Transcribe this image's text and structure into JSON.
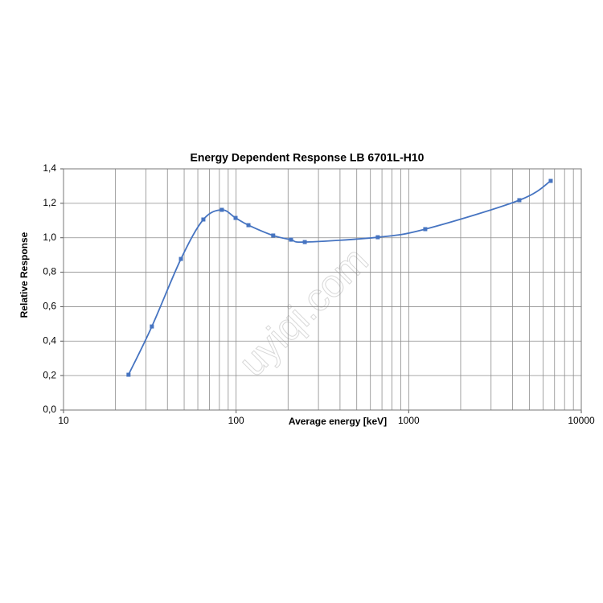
{
  "chart_data": {
    "type": "line",
    "title": "Energy Dependent Response  LB 6701L-H10",
    "x_label": "Average energy [keV]",
    "y_label": "Relative Response",
    "watermark": "uyiqi.com",
    "x_scale": "log",
    "grid": true,
    "xlim": [
      10,
      10000
    ],
    "xticks": [
      10,
      100,
      1000,
      10000
    ],
    "ylim": [
      0,
      1.4
    ],
    "yticks": [
      {
        "value": 0,
        "label": "0,0"
      },
      {
        "value": 0.2,
        "label": "0,2"
      },
      {
        "value": 0.4,
        "label": "0,4"
      },
      {
        "value": 0.6,
        "label": "0,6"
      },
      {
        "value": 0.8,
        "label": "0,8"
      },
      {
        "value": 1.0,
        "label": "1,0"
      },
      {
        "value": 1.2,
        "label": "1,2"
      },
      {
        "value": 1.4,
        "label": "1,4"
      }
    ],
    "series": [
      {
        "color": "#4674c1",
        "x": [
          23.8,
          32.5,
          47.9,
          64.6,
          82.7,
          99.3,
          117.9,
          164,
          208,
          250,
          662,
          1247,
          4375,
          6650
        ],
        "values": [
          0.205,
          0.485,
          0.877,
          1.106,
          1.162,
          1.115,
          1.073,
          1.013,
          0.989,
          0.975,
          1.003,
          1.05,
          1.218,
          1.33
        ]
      }
    ]
  }
}
